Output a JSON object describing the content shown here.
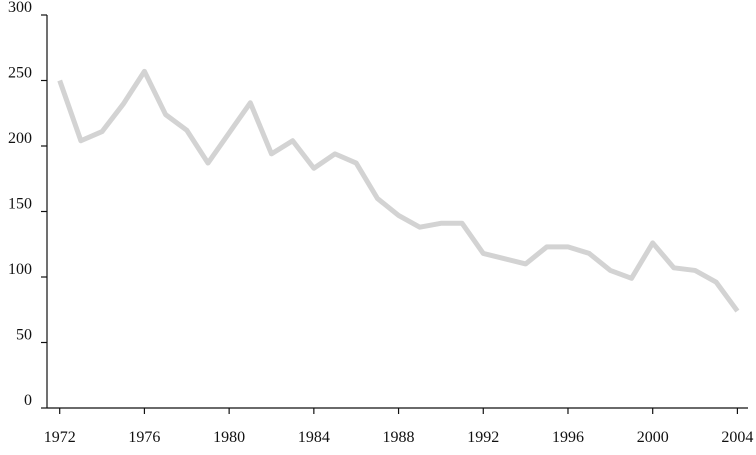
{
  "chart_data": {
    "type": "line",
    "x": [
      1972,
      1973,
      1974,
      1975,
      1976,
      1977,
      1978,
      1979,
      1980,
      1981,
      1982,
      1983,
      1984,
      1985,
      1986,
      1987,
      1988,
      1989,
      1990,
      1991,
      1992,
      1993,
      1994,
      1995,
      1996,
      1997,
      1998,
      1999,
      2000,
      2001,
      2002,
      2003,
      2004
    ],
    "series": [
      {
        "color": "#d3d3d3",
        "values": [
          250,
          204,
          211,
          232,
          257,
          224,
          212,
          187,
          210,
          233,
          194,
          204,
          183,
          194,
          187,
          160,
          147,
          138,
          141,
          141,
          118,
          114,
          110,
          123,
          123,
          118,
          105,
          99,
          126,
          107,
          105,
          96,
          74
        ]
      }
    ],
    "xlim": [
      1971.4,
      2004.5
    ],
    "xticks": [
      1972,
      1976,
      1980,
      1984,
      1988,
      1992,
      1996,
      2000,
      2004
    ],
    "ylim": [
      0,
      300
    ],
    "yticks": [
      0,
      50,
      100,
      150,
      200,
      250,
      300
    ],
    "grid": false
  }
}
